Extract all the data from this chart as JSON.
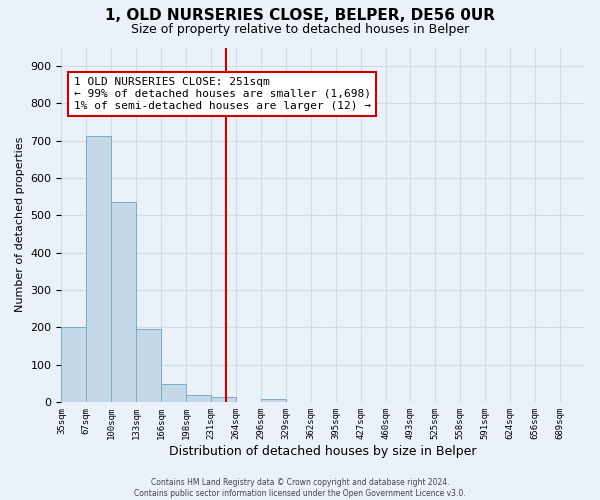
{
  "title": "1, OLD NURSERIES CLOSE, BELPER, DE56 0UR",
  "subtitle": "Size of property relative to detached houses in Belper",
  "xlabel": "Distribution of detached houses by size in Belper",
  "ylabel": "Number of detached properties",
  "bin_labels": [
    "35sqm",
    "67sqm",
    "100sqm",
    "133sqm",
    "166sqm",
    "198sqm",
    "231sqm",
    "264sqm",
    "296sqm",
    "329sqm",
    "362sqm",
    "395sqm",
    "427sqm",
    "460sqm",
    "493sqm",
    "525sqm",
    "558sqm",
    "591sqm",
    "624sqm",
    "656sqm",
    "689sqm"
  ],
  "bar_heights": [
    200,
    713,
    535,
    196,
    47,
    19,
    12,
    0,
    8,
    0,
    0,
    0,
    0,
    0,
    0,
    0,
    0,
    0,
    0,
    0,
    0
  ],
  "bar_color": "#c5d8e8",
  "bar_edge_color": "#7aacc8",
  "vline_color": "#cc0000",
  "annotation_text": "1 OLD NURSERIES CLOSE: 251sqm\n← 99% of detached houses are smaller (1,698)\n1% of semi-detached houses are larger (12) →",
  "annotation_box_color": "#ffffff",
  "annotation_box_edge_color": "#cc0000",
  "ylim": [
    0,
    950
  ],
  "yticks": [
    0,
    100,
    200,
    300,
    400,
    500,
    600,
    700,
    800,
    900
  ],
  "grid_color": "#d0dce8",
  "footnote": "Contains HM Land Registry data © Crown copyright and database right 2024.\nContains public sector information licensed under the Open Government Licence v3.0.",
  "background_color": "#eaf1f8",
  "title_fontsize": 11,
  "subtitle_fontsize": 9,
  "annotation_fontsize": 8,
  "ylabel_fontsize": 8,
  "xlabel_fontsize": 9
}
